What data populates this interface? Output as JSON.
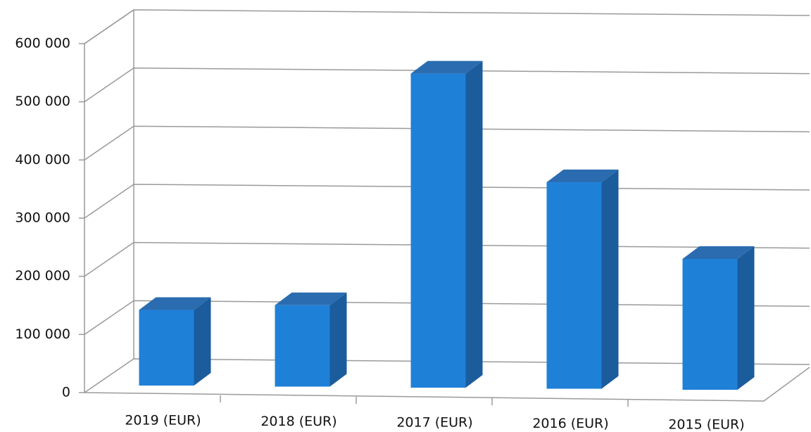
{
  "chart_data": {
    "type": "bar3d",
    "categories": [
      "2019 (EUR)",
      "2018 (EUR)",
      "2017 (EUR)",
      "2016 (EUR)",
      "2015 (EUR)"
    ],
    "values": [
      130000,
      140000,
      540000,
      355000,
      225000
    ],
    "color": "#1f80d8",
    "ylim": [
      0,
      600000
    ],
    "yticks": [
      0,
      {
        "value": 100000,
        "label": "100 000"
      },
      {
        "value": 200000,
        "label": "200 000"
      },
      {
        "value": 300000,
        "label": "300 000"
      },
      {
        "value": 400000,
        "label": "400 000"
      },
      {
        "value": 500000,
        "label": "500 000"
      },
      {
        "value": 600000,
        "label": "600 000"
      }
    ],
    "grid": true
  }
}
